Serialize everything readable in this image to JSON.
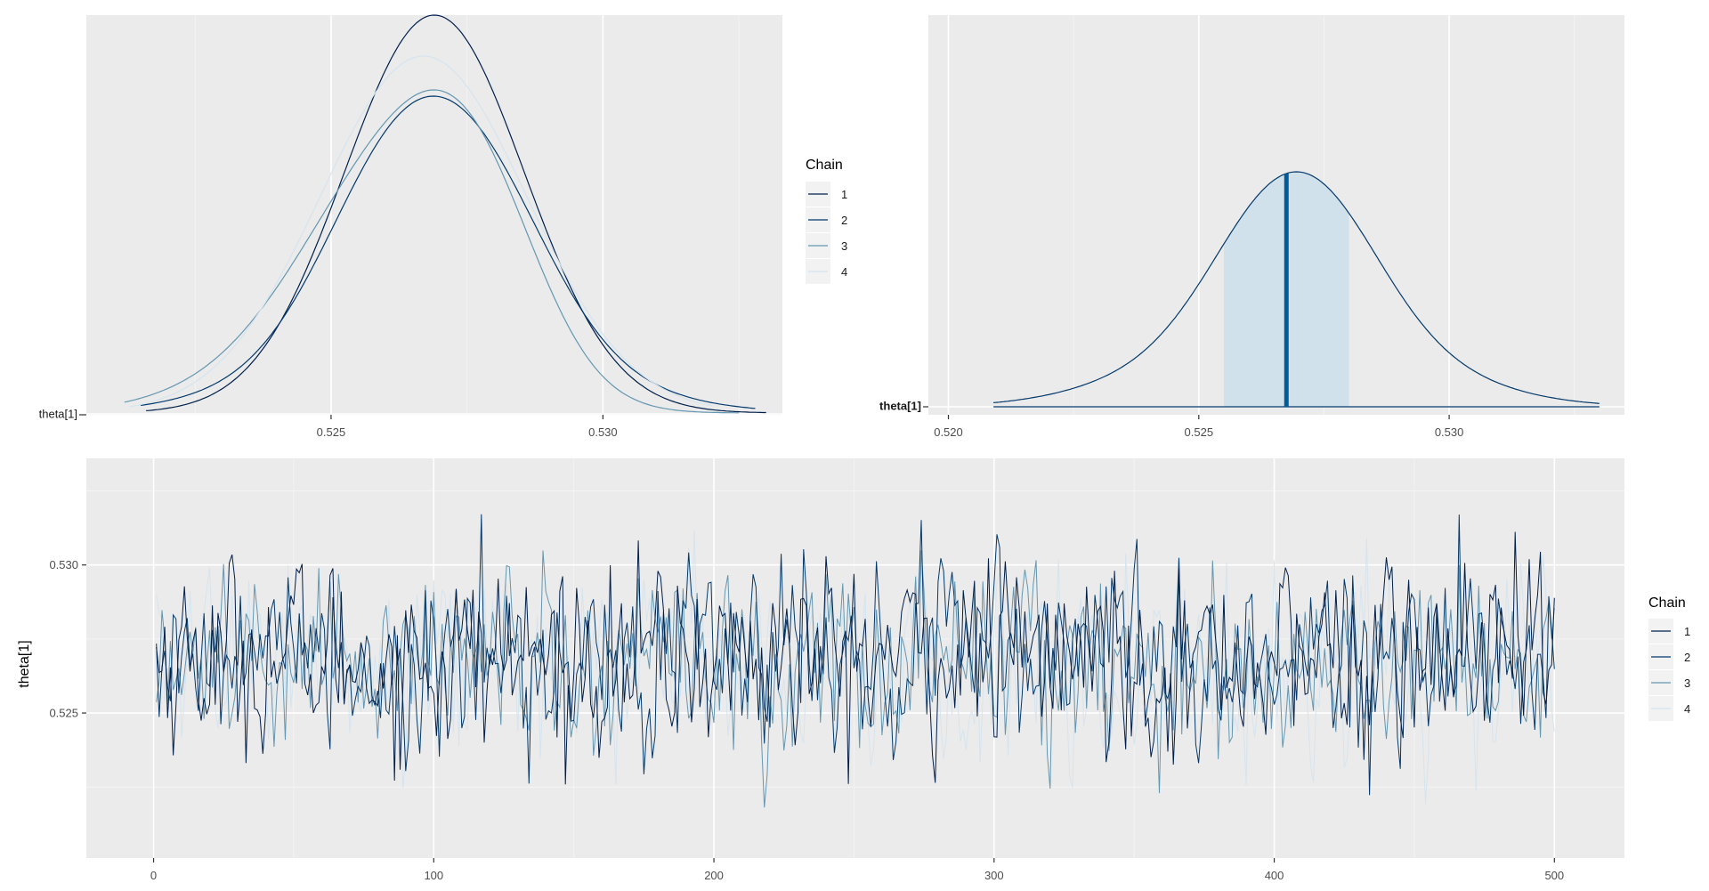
{
  "chart_data": [
    {
      "id": "density",
      "type": "line",
      "ylabel_tick": "theta[1]",
      "xticks": [
        "0.525",
        "0.530"
      ],
      "xtick_values": [
        0.525,
        0.53
      ],
      "xlim": [
        0.5205,
        0.5333
      ],
      "legend": {
        "title": "Chain",
        "placement": "right",
        "entries": [
          "1",
          "2",
          "3",
          "4"
        ]
      },
      "series": [
        {
          "name": "1",
          "color": "#011f4b",
          "mean": 0.5268,
          "sd": 0.00175,
          "x_range": [
            0.5216,
            0.533
          ]
        },
        {
          "name": "2",
          "color": "#03396c",
          "mean": 0.5269,
          "sd": 0.0018,
          "x_range": [
            0.5215,
            0.5328
          ]
        },
        {
          "name": "3",
          "color": "#6497b1",
          "mean": 0.5266,
          "sd": 0.00185,
          "x_range": [
            0.5212,
            0.5325
          ]
        },
        {
          "name": "4",
          "color": "#d6e4ee",
          "mean": 0.5267,
          "sd": 0.0018,
          "x_range": [
            0.5213,
            0.532
          ]
        }
      ]
    },
    {
      "id": "areas",
      "type": "area",
      "ylabel_tick": "theta[1]",
      "xticks": [
        "0.520",
        "0.525",
        "0.530"
      ],
      "xtick_values": [
        0.52,
        0.525,
        0.53
      ],
      "xlim": [
        0.5196,
        0.5335
      ],
      "density_range": [
        0.5209,
        0.533
      ],
      "median": 0.52675,
      "interval": [
        0.5255,
        0.528
      ],
      "line_color": "#03396c",
      "fill_color": "#d1e1ec",
      "median_color": "#005b96"
    },
    {
      "id": "trace",
      "type": "line",
      "ylabel": "theta[1]",
      "yticks": [
        "0.525",
        "0.530"
      ],
      "ytick_values": [
        0.525,
        0.53
      ],
      "ylim": [
        0.5201,
        0.5336
      ],
      "xticks": [
        "0",
        "100",
        "200",
        "300",
        "400",
        "500"
      ],
      "xtick_values": [
        0,
        100,
        200,
        300,
        400,
        500
      ],
      "xlim": [
        -24,
        525
      ],
      "iterations": 500,
      "legend": {
        "title": "Chain",
        "placement": "right",
        "entries": [
          "1",
          "2",
          "3",
          "4"
        ]
      },
      "series": [
        {
          "name": "1",
          "color": "#011f4b",
          "mean": 0.5269,
          "sd": 0.0016,
          "min": 0.5213,
          "max": 0.533
        },
        {
          "name": "2",
          "color": "#03396c",
          "mean": 0.5269,
          "sd": 0.0016,
          "min": 0.5216,
          "max": 0.5327
        },
        {
          "name": "3",
          "color": "#6497b1",
          "mean": 0.5268,
          "sd": 0.0016,
          "min": 0.5218,
          "max": 0.5322
        },
        {
          "name": "4",
          "color": "#d6e4ee",
          "mean": 0.5267,
          "sd": 0.0016,
          "min": 0.521,
          "max": 0.5324
        }
      ]
    }
  ],
  "colors": {
    "panel_bg": "#ebebeb",
    "grid": "#ffffff"
  }
}
